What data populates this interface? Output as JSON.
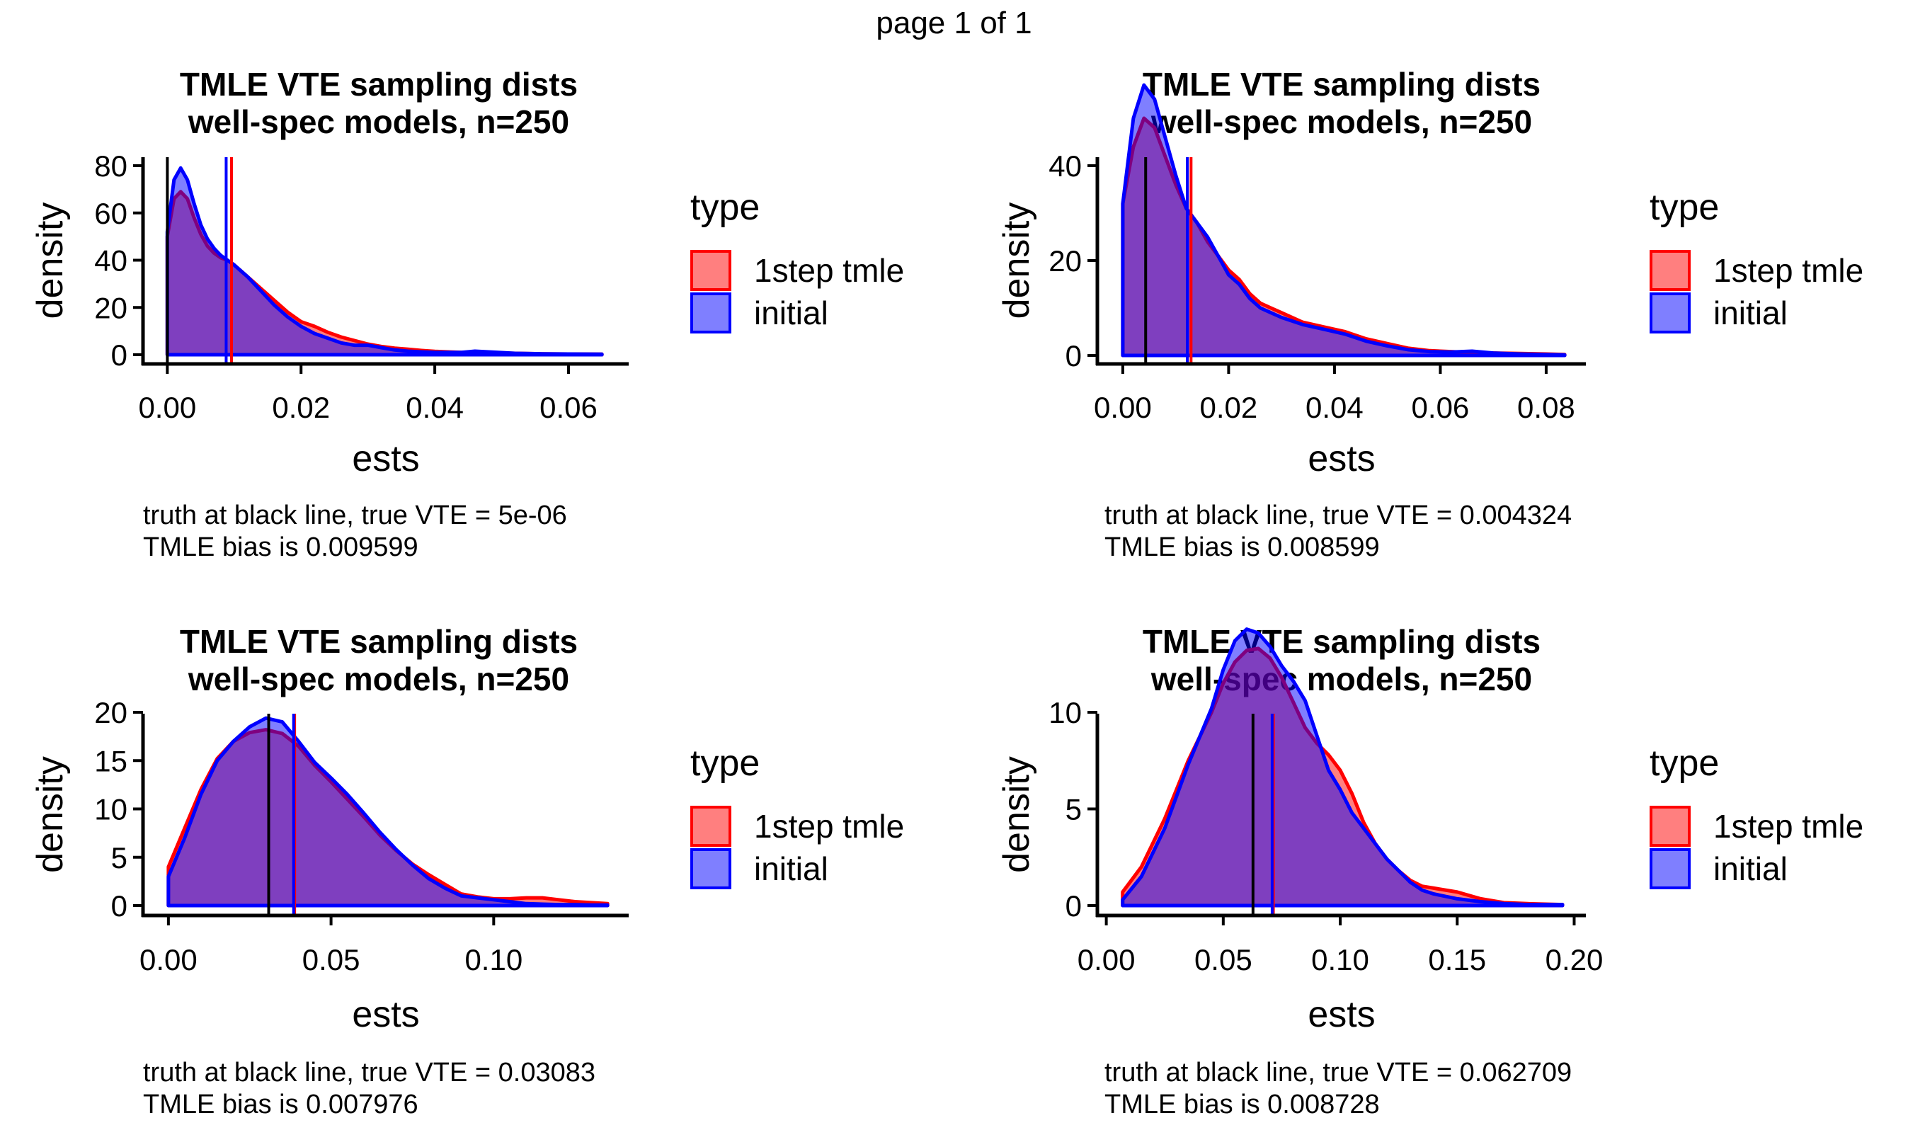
{
  "header": {
    "page_label": "page 1 of 1"
  },
  "colors": {
    "tmle_line": "#ff0000",
    "tmle_fill": "#ff0000",
    "initial_line": "#0000ff",
    "initial_fill": "#0000ff",
    "truth_line": "#000000",
    "fill_opacity": 0.5
  },
  "legend": {
    "title": "type",
    "items": [
      {
        "label": "1step tmle",
        "series": "tmle"
      },
      {
        "label": "initial",
        "series": "initial"
      }
    ]
  },
  "chart_data": [
    {
      "type": "area",
      "title": [
        "TMLE VTE sampling dists",
        "well-spec models, n=250"
      ],
      "xlabel": "ests",
      "ylabel": "density",
      "xlim": [
        -0.003,
        0.069
      ],
      "ylim": [
        -4,
        83
      ],
      "xticks": [
        0.0,
        0.02,
        0.04,
        0.06
      ],
      "xtick_labels": [
        "0.00",
        "0.02",
        "0.04",
        "0.06"
      ],
      "yticks": [
        0,
        20,
        40,
        60,
        80
      ],
      "ytick_labels": [
        "0",
        "20",
        "40",
        "60",
        "80"
      ],
      "grid": false,
      "legend_position": "right",
      "caption": [
        "truth at black line, true VTE = 5e-06",
        "TMLE bias is 0.009599"
      ],
      "vlines": {
        "truth": 5e-06,
        "tmle_mean": 0.0096,
        "initial_mean": 0.0088
      },
      "series": [
        {
          "name": "1step tmle",
          "key": "tmle",
          "x": [
            0.0,
            0.001,
            0.002,
            0.003,
            0.004,
            0.005,
            0.006,
            0.007,
            0.008,
            0.009,
            0.01,
            0.012,
            0.014,
            0.016,
            0.018,
            0.02,
            0.022,
            0.024,
            0.026,
            0.028,
            0.03,
            0.032,
            0.034,
            0.036,
            0.038,
            0.04,
            0.044,
            0.048,
            0.052,
            0.056,
            0.06,
            0.065
          ],
          "y": [
            50,
            66,
            69,
            66,
            58,
            51,
            46,
            43,
            41,
            40,
            38,
            33,
            28,
            23,
            18,
            14,
            12,
            9.5,
            7.5,
            6,
            4.5,
            3.5,
            2.8,
            2.3,
            1.8,
            1.4,
            1.0,
            0.8,
            0.6,
            0.4,
            0.3,
            0.2
          ]
        },
        {
          "name": "initial",
          "key": "initial",
          "x": [
            0.0,
            0.001,
            0.002,
            0.003,
            0.004,
            0.005,
            0.006,
            0.007,
            0.008,
            0.009,
            0.01,
            0.012,
            0.014,
            0.016,
            0.018,
            0.02,
            0.022,
            0.024,
            0.026,
            0.028,
            0.03,
            0.032,
            0.034,
            0.036,
            0.038,
            0.04,
            0.044,
            0.046,
            0.048,
            0.052,
            0.056,
            0.06,
            0.065
          ],
          "y": [
            52,
            74,
            79,
            74,
            64,
            55,
            49,
            45,
            42,
            40,
            38,
            33,
            27,
            21,
            16,
            12,
            9,
            7,
            5,
            4,
            4,
            3,
            2,
            1.5,
            1.2,
            1.0,
            1.0,
            1.5,
            1.2,
            0.6,
            0.4,
            0.3,
            0.2
          ]
        }
      ]
    },
    {
      "type": "area",
      "title": [
        "TMLE VTE sampling dists",
        "well-spec models, n=250"
      ],
      "xlabel": "ests",
      "ylabel": "density",
      "xlim": [
        -0.004,
        0.0875
      ],
      "ylim": [
        -3,
        60
      ],
      "xticks": [
        0.0,
        0.02,
        0.04,
        0.06,
        0.08
      ],
      "xtick_labels": [
        "0.00",
        "0.02",
        "0.04",
        "0.06",
        "0.08"
      ],
      "yticks": [
        0,
        20,
        40
      ],
      "ytick_labels": [
        "0",
        "20",
        "40"
      ],
      "grid": false,
      "legend_position": "right",
      "caption": [
        "truth at black line, true VTE = 0.004324",
        "TMLE bias is 0.008599"
      ],
      "vlines": {
        "truth": 0.004324,
        "tmle_mean": 0.0129,
        "initial_mean": 0.0122
      },
      "series": [
        {
          "name": "1step tmle",
          "key": "tmle",
          "x": [
            0.0,
            0.002,
            0.004,
            0.006,
            0.008,
            0.01,
            0.012,
            0.014,
            0.016,
            0.018,
            0.02,
            0.022,
            0.024,
            0.026,
            0.028,
            0.03,
            0.034,
            0.038,
            0.042,
            0.046,
            0.05,
            0.054,
            0.058,
            0.062,
            0.066,
            0.07,
            0.075,
            0.08,
            0.0835
          ],
          "y": [
            32,
            44,
            50,
            48,
            42,
            36,
            31,
            28,
            24,
            21,
            18,
            16,
            13,
            11,
            10,
            9,
            7,
            6,
            5,
            3.5,
            2.5,
            1.5,
            1,
            0.8,
            0.6,
            0.5,
            0.4,
            0.3,
            0.2
          ]
        },
        {
          "name": "initial",
          "key": "initial",
          "x": [
            0.0,
            0.002,
            0.004,
            0.006,
            0.008,
            0.01,
            0.012,
            0.014,
            0.016,
            0.018,
            0.02,
            0.022,
            0.024,
            0.026,
            0.028,
            0.03,
            0.034,
            0.038,
            0.042,
            0.046,
            0.05,
            0.054,
            0.058,
            0.062,
            0.066,
            0.07,
            0.075,
            0.08,
            0.0835
          ],
          "y": [
            32,
            50,
            57,
            54,
            46,
            38,
            31,
            28,
            25,
            21,
            17,
            15,
            12,
            10,
            9,
            8,
            6.5,
            5.5,
            4.5,
            3,
            2,
            1.2,
            0.8,
            0.7,
            0.9,
            0.5,
            0.3,
            0.2,
            0.1
          ]
        }
      ]
    },
    {
      "type": "area",
      "title": [
        "TMLE VTE sampling dists",
        "well-spec models, n=250"
      ],
      "xlabel": "ests",
      "ylabel": "density",
      "xlim": [
        -0.0065,
        0.1415
      ],
      "ylim": [
        -1,
        20.5
      ],
      "xticks": [
        0.0,
        0.05,
        0.1
      ],
      "xtick_labels": [
        "0.00",
        "0.05",
        "0.10"
      ],
      "yticks": [
        0,
        5,
        10,
        15,
        20
      ],
      "ytick_labels": [
        "0",
        "5",
        "10",
        "15",
        "20"
      ],
      "grid": false,
      "legend_position": "right",
      "caption": [
        "truth at black line, true VTE = 0.03083",
        "TMLE bias is 0.007976"
      ],
      "vlines": {
        "truth": 0.03083,
        "tmle_mean": 0.0388,
        "initial_mean": 0.0385
      },
      "series": [
        {
          "name": "1step tmle",
          "key": "tmle",
          "x": [
            0.0,
            0.005,
            0.01,
            0.015,
            0.02,
            0.025,
            0.03,
            0.035,
            0.04,
            0.045,
            0.05,
            0.055,
            0.06,
            0.065,
            0.07,
            0.075,
            0.08,
            0.085,
            0.09,
            0.095,
            0.1,
            0.105,
            0.11,
            0.115,
            0.12,
            0.125,
            0.13,
            0.135
          ],
          "y": [
            4,
            8,
            12,
            15.2,
            17,
            17.9,
            18.2,
            17.8,
            16.5,
            14.5,
            12.8,
            11,
            9.2,
            7.3,
            5.7,
            4.3,
            3.2,
            2.2,
            1.2,
            0.9,
            0.7,
            0.7,
            0.8,
            0.8,
            0.6,
            0.4,
            0.3,
            0.2
          ]
        },
        {
          "name": "initial",
          "key": "initial",
          "x": [
            0.0,
            0.005,
            0.01,
            0.015,
            0.02,
            0.025,
            0.03,
            0.035,
            0.04,
            0.045,
            0.05,
            0.055,
            0.06,
            0.065,
            0.07,
            0.075,
            0.08,
            0.085,
            0.09,
            0.095,
            0.1,
            0.105,
            0.11,
            0.115,
            0.12,
            0.125,
            0.13,
            0.135
          ],
          "y": [
            3,
            7,
            11.5,
            15,
            17,
            18.5,
            19.4,
            19,
            17,
            14.8,
            13.2,
            11.5,
            9.6,
            7.6,
            5.8,
            4.2,
            2.8,
            1.8,
            1.0,
            0.8,
            0.6,
            0.4,
            0.2,
            0.15,
            0.1,
            0.1,
            0.05,
            0.05
          ]
        }
      ]
    },
    {
      "type": "area",
      "title": [
        "TMLE VTE sampling dists",
        "well-spec models, n=250"
      ],
      "xlabel": "ests",
      "ylabel": "density",
      "xlim": [
        -0.002,
        0.205
      ],
      "ylim": [
        -0.6,
        14.8
      ],
      "xticks": [
        0.0,
        0.05,
        0.1,
        0.15,
        0.2
      ],
      "xtick_labels": [
        "0.00",
        "0.05",
        "0.10",
        "0.15",
        "0.20"
      ],
      "yticks": [
        0,
        5,
        10
      ],
      "ytick_labels": [
        "0",
        "5",
        "10"
      ],
      "grid": false,
      "legend_position": "right",
      "caption": [
        "truth at black line, true VTE = 0.062709",
        "TMLE bias is 0.008728"
      ],
      "vlines": {
        "truth": 0.062709,
        "tmle_mean": 0.0714,
        "initial_mean": 0.0709
      },
      "series": [
        {
          "name": "1step tmle",
          "key": "tmle",
          "x": [
            0.007,
            0.015,
            0.025,
            0.035,
            0.045,
            0.05,
            0.055,
            0.06,
            0.065,
            0.07,
            0.075,
            0.08,
            0.085,
            0.09,
            0.095,
            0.1,
            0.105,
            0.11,
            0.115,
            0.12,
            0.125,
            0.13,
            0.135,
            0.14,
            0.15,
            0.16,
            0.17,
            0.18,
            0.195
          ],
          "y": [
            0.7,
            2,
            4.5,
            7.5,
            10,
            11.5,
            12.6,
            13.2,
            13.3,
            12.8,
            11.8,
            10.5,
            9.2,
            8.4,
            7.8,
            7.0,
            5.8,
            4.3,
            3.2,
            2.4,
            1.8,
            1.3,
            1.0,
            0.9,
            0.7,
            0.35,
            0.15,
            0.1,
            0.05
          ]
        },
        {
          "name": "initial",
          "key": "initial",
          "x": [
            0.007,
            0.015,
            0.025,
            0.035,
            0.045,
            0.05,
            0.055,
            0.06,
            0.065,
            0.07,
            0.075,
            0.08,
            0.085,
            0.09,
            0.095,
            0.1,
            0.105,
            0.11,
            0.115,
            0.12,
            0.125,
            0.13,
            0.135,
            0.14,
            0.15,
            0.16,
            0.17,
            0.18,
            0.195
          ],
          "y": [
            0.3,
            1.5,
            4,
            7.3,
            10.2,
            12.2,
            13.7,
            14.3,
            14.1,
            13.4,
            12.4,
            11.6,
            10.6,
            8.8,
            7.0,
            6.0,
            4.8,
            4.0,
            3.2,
            2.4,
            1.8,
            1.2,
            0.8,
            0.6,
            0.35,
            0.2,
            0.1,
            0.05,
            0.05
          ]
        }
      ]
    }
  ]
}
